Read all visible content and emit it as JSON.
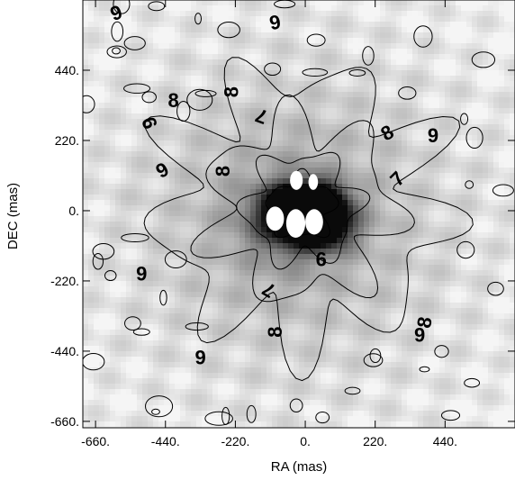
{
  "chart_data": {
    "type": "heatmap",
    "xlabel": "RA (mas)",
    "ylabel": "DEC (mas)",
    "xlim": [
      -700,
      660
    ],
    "ylim": [
      -680,
      660
    ],
    "x_ticks": [
      "-660.",
      "-440.",
      "-220.",
      "0.",
      "220.",
      "440."
    ],
    "x_tick_values": [
      -660,
      -440,
      -220,
      0,
      220,
      440
    ],
    "y_ticks": [
      "-660.",
      "-440.",
      "-220.",
      "0.",
      "220.",
      "440."
    ],
    "y_tick_values": [
      -660,
      -440,
      -220,
      0,
      220,
      440
    ],
    "grid": false,
    "colormap": "grayscale",
    "contour_levels": [
      6,
      7,
      8,
      9
    ],
    "emission_peaks": [
      {
        "x": -22,
        "y": 30,
        "sx": 70,
        "sy": 40,
        "v": 1.0
      },
      {
        "x": 32,
        "y": 30,
        "sx": 60,
        "sy": 40,
        "v": 0.95
      },
      {
        "x": -10,
        "y": -35,
        "sx": 90,
        "sy": 55,
        "v": 1.0
      },
      {
        "x": 55,
        "y": -40,
        "sx": 55,
        "sy": 45,
        "v": 0.9
      }
    ],
    "saturated_regions": [
      {
        "x": -28,
        "y": 95,
        "rx": 20,
        "ry": 30
      },
      {
        "x": 25,
        "y": 90,
        "rx": 15,
        "ry": 25
      },
      {
        "x": -95,
        "y": -25,
        "rx": 28,
        "ry": 38
      },
      {
        "x": -30,
        "y": -40,
        "rx": 30,
        "ry": 45
      },
      {
        "x": 28,
        "y": -35,
        "rx": 28,
        "ry": 40
      }
    ],
    "contour_labels": [
      {
        "text": "9",
        "x": -595,
        "y": 620,
        "angle": 20
      },
      {
        "text": "9",
        "x": -95,
        "y": 590,
        "angle": 10
      },
      {
        "text": "8",
        "x": -415,
        "y": 345,
        "angle": 0
      },
      {
        "text": "8",
        "x": -232,
        "y": 372,
        "angle": 90
      },
      {
        "text": "9",
        "x": -490,
        "y": 275,
        "angle": 110
      },
      {
        "text": "7",
        "x": -138,
        "y": 296,
        "angle": 160
      },
      {
        "text": "8",
        "x": 258,
        "y": 244,
        "angle": 30
      },
      {
        "text": "9",
        "x": 402,
        "y": 236,
        "angle": 0
      },
      {
        "text": "9",
        "x": -450,
        "y": 127,
        "angle": 30
      },
      {
        "text": "8",
        "x": -260,
        "y": 124,
        "angle": 90
      },
      {
        "text": "7",
        "x": 290,
        "y": 100,
        "angle": 45
      },
      {
        "text": "6",
        "x": 50,
        "y": -152,
        "angle": 0
      },
      {
        "text": "9",
        "x": -515,
        "y": -198,
        "angle": 0
      },
      {
        "text": "7",
        "x": -115,
        "y": -248,
        "angle": 150
      },
      {
        "text": "8",
        "x": 375,
        "y": -350,
        "angle": 80
      },
      {
        "text": "8",
        "x": -95,
        "y": -380,
        "angle": 90
      },
      {
        "text": "9",
        "x": 360,
        "y": -390,
        "angle": 0
      },
      {
        "text": "9",
        "x": -330,
        "y": -460,
        "angle": 0
      }
    ]
  }
}
